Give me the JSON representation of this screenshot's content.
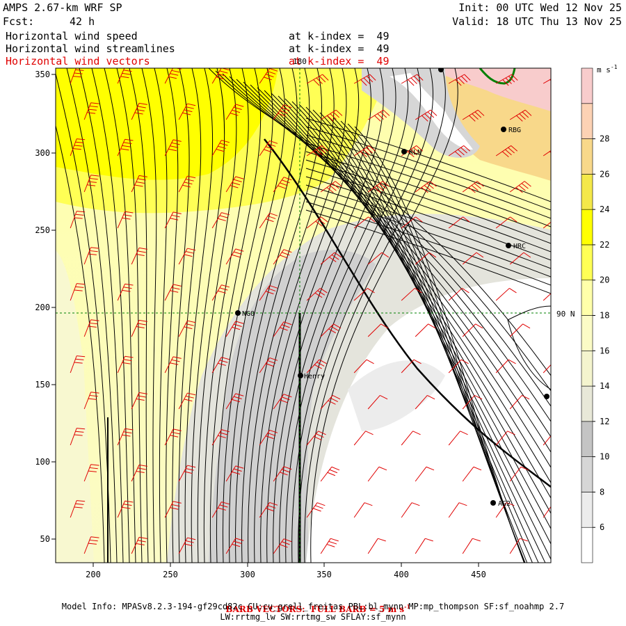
{
  "header": {
    "model_title": "AMPS 2.67-km WRF SP",
    "forecast_label": "Fcst:",
    "forecast_value": "42 h",
    "init_text": "Init: 00 UTC Wed 12 Nov 25",
    "valid_text": "Valid: 18 UTC Thu 13 Nov 25",
    "fields": [
      {
        "name": "Horizontal wind speed",
        "level": "at k-index =  49",
        "color": "#000000"
      },
      {
        "name": "Horizontal wind streamlines",
        "level": "at k-index =  49",
        "color": "#000000"
      },
      {
        "name": "Horizontal wind vectors",
        "level": "at k-index =  49",
        "color": "#e00000"
      }
    ]
  },
  "map": {
    "x_ticks": [
      "200",
      "250",
      "300",
      "350",
      "400",
      "450"
    ],
    "y_ticks": [
      "50",
      "100",
      "150",
      "200",
      "250",
      "300",
      "350"
    ],
    "meridian_label": "180",
    "parallel_label": "90 N",
    "stations": [
      {
        "name": "NGO"
      },
      {
        "name": "Henry"
      },
      {
        "name": "KLN"
      },
      {
        "name": "RBG"
      },
      {
        "name": "HRC"
      },
      {
        "name": "AG2"
      },
      {
        "name": ""
      },
      {
        "name": ""
      }
    ]
  },
  "colorbar": {
    "units": "m s",
    "units_exp": "-1",
    "labels": [
      "6",
      "8",
      "10",
      "12",
      "14",
      "16",
      "18",
      "20",
      "22",
      "24",
      "26",
      "28"
    ],
    "bins": [
      {
        "color": "#ffffff"
      },
      {
        "color": "#ececec"
      },
      {
        "color": "#d6d6d6"
      },
      {
        "color": "#c4c4c4"
      },
      {
        "color": "#e8e8d8"
      },
      {
        "color": "#f4f4ce"
      },
      {
        "color": "#fbfbc6"
      },
      {
        "color": "#ffffaa"
      },
      {
        "color": "#ffff55"
      },
      {
        "color": "#ffff00"
      },
      {
        "color": "#f4e84a"
      },
      {
        "color": "#f8d88a"
      },
      {
        "color": "#fcd2b4"
      },
      {
        "color": "#f8cccc"
      }
    ]
  },
  "footer": {
    "barb_note": "BARB VECTORS:  FULL BARB = 5 m s",
    "barb_note_exp": "-1",
    "model_info": "Model Info: MPASv8.2.3-194-gf29cd82c CU:cu_grell_freitas PBL:bl_mynn MP:mp_thompson SF:sf_noahmp 2.7",
    "model_info_2": "LW:rrtmg_lw SW:rrtmg_sw SFLAY:sf_mynn"
  },
  "colors": {
    "barb": "#e00000",
    "streamline": "#000000",
    "grid_line": "#008000",
    "coast": "#008000"
  }
}
